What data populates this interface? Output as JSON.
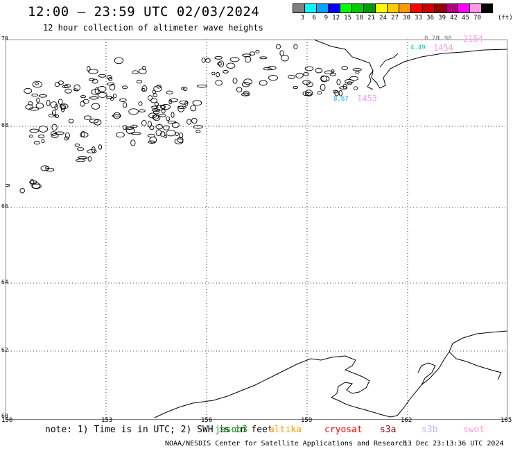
{
  "header": {
    "title": "12:00 – 23:59 UTC 02/03/2024",
    "subtitle": "12 hour collection of altimeter wave heights"
  },
  "color_scale": {
    "colors": [
      "#7f7f7f",
      "#00ffff",
      "#00a5ff",
      "#0000ff",
      "#00ff00",
      "#00cc00",
      "#009900",
      "#ffff00",
      "#ffcc00",
      "#ff9900",
      "#ff0000",
      "#cc0000",
      "#990000",
      "#b3007f",
      "#ff00ff",
      "#ff99e6",
      "#000000"
    ],
    "labels": [
      "3",
      "6",
      "9",
      "12",
      "15",
      "18",
      "21",
      "24",
      "27",
      "30",
      "33",
      "36",
      "39",
      "42",
      "45",
      "70"
    ],
    "units": "(ft)"
  },
  "axes": {
    "lat_labels": [
      "70",
      "68",
      "66",
      "64",
      "62",
      "60"
    ],
    "lon_labels": [
      "150",
      "153",
      "156",
      "159",
      "162",
      "165"
    ]
  },
  "swh_labels": [
    {
      "text": "0.78",
      "color": "#7f7f7f"
    },
    {
      "text": "1.98",
      "color": "#7f7f7f"
    },
    {
      "text": "2154",
      "color": "#ff99e6"
    },
    {
      "text": "4.49",
      "color": "#00cccc"
    },
    {
      "text": "1454",
      "color": "#ff99e6"
    },
    {
      "text": "8.67",
      "color": "#00a5ff"
    },
    {
      "text": "1453",
      "color": "#ff99e6"
    }
  ],
  "footer": {
    "note": "note: 1) Time is in UTC; 2) SWH is in feet",
    "satellites": [
      {
        "name": "jason3",
        "color": "#009900"
      },
      {
        "name": "altika",
        "color": "#ff9900"
      },
      {
        "name": "cryosat",
        "color": "#ff0000"
      },
      {
        "name": "s3a",
        "color": "#990000"
      },
      {
        "name": "s3b",
        "color": "#c3b3ff"
      },
      {
        "name": "swot",
        "color": "#ff99e6"
      }
    ],
    "credit": "NOAA/NESDIS Center for Satellite Applications and Research",
    "timestamp": "13 Dec 23:13:36 UTC 2024"
  }
}
